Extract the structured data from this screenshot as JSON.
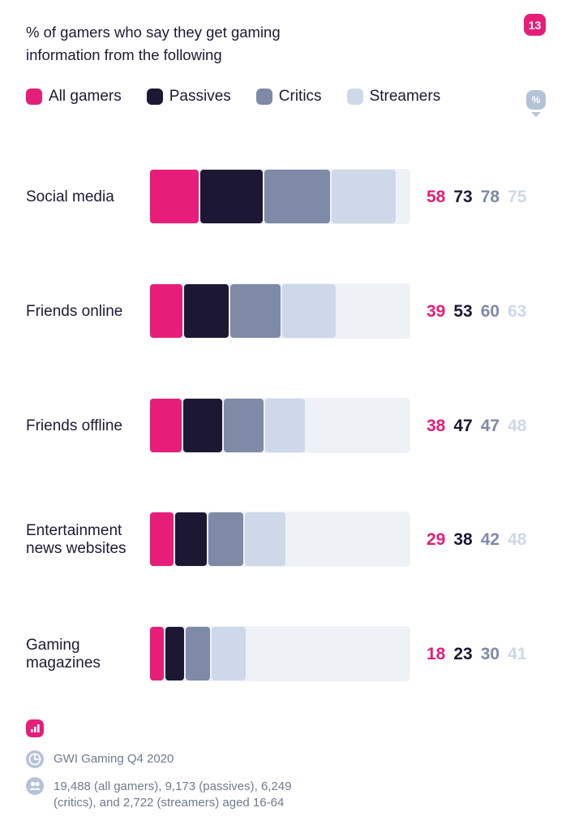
{
  "header": {
    "title": "% of gamers who say they get gaming information from the following",
    "badge": "13",
    "percent_icon": "%"
  },
  "colors": {
    "all_gamers": "#e61e7a",
    "passives": "#1c1834",
    "critics": "#7e8aa6",
    "streamers": "#ced8e8",
    "track": "#eef1f6"
  },
  "chart_data": {
    "type": "bar",
    "categories": [
      "Social media",
      "Friends online",
      "Friends offline",
      "Entertainment news websites",
      "Gaming magazines"
    ],
    "series": [
      {
        "name": "All gamers",
        "values": [
          58,
          39,
          38,
          29,
          18
        ]
      },
      {
        "name": "Passives",
        "values": [
          73,
          53,
          47,
          38,
          23
        ]
      },
      {
        "name": "Critics",
        "values": [
          78,
          60,
          47,
          42,
          30
        ]
      },
      {
        "name": "Streamers",
        "values": [
          75,
          63,
          48,
          48,
          41
        ]
      }
    ],
    "stacked": true,
    "legend": "top"
  },
  "footer": {
    "chart_icon": "bar-chart-icon",
    "source": "GWI Gaming Q4 2020",
    "sample": "19,488 (all gamers), 9,173 (passives), 6,249 (critics), and 2,722 (streamers) aged 16-64"
  }
}
